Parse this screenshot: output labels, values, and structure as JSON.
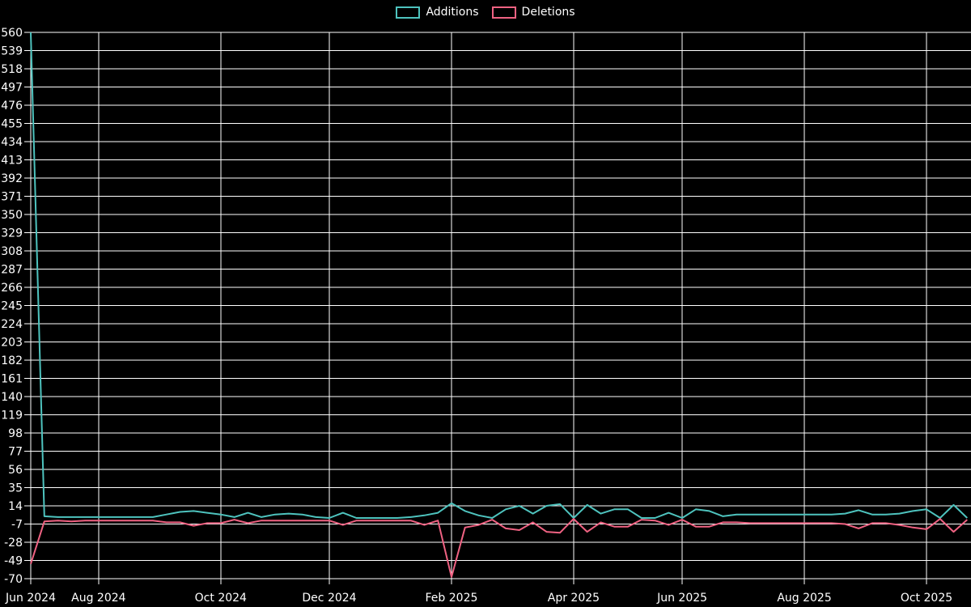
{
  "chart_data": {
    "type": "line",
    "title": "",
    "xlabel": "",
    "ylabel": "",
    "x_unit": "week",
    "grid": true,
    "legend_position": "top-center",
    "background_color": "#000000",
    "grid_color": "#ffffff",
    "text_color": "#ffffff",
    "ylim": [
      -70,
      560
    ],
    "y_ticks": [
      560,
      539,
      518,
      497,
      476,
      455,
      434,
      413,
      392,
      371,
      350,
      329,
      308,
      287,
      266,
      245,
      224,
      203,
      182,
      161,
      140,
      119,
      98,
      77,
      56,
      35,
      14,
      -7,
      -28,
      -49,
      -70
    ],
    "x_ticks": [
      {
        "label": "Jun 2024",
        "week": 0
      },
      {
        "label": "Aug 2024",
        "week": 5
      },
      {
        "label": "Oct 2024",
        "week": 14
      },
      {
        "label": "Dec 2024",
        "week": 22
      },
      {
        "label": "Feb 2025",
        "week": 31
      },
      {
        "label": "Apr 2025",
        "week": 40
      },
      {
        "label": "Jun 2025",
        "week": 48
      },
      {
        "label": "Aug 2025",
        "week": 57
      },
      {
        "label": "Oct 2025",
        "week": 66
      }
    ],
    "series": [
      {
        "name": "Additions",
        "color": "#4ec3be",
        "values": [
          560,
          2,
          1,
          1,
          1,
          1,
          1,
          1,
          1,
          1,
          4,
          7,
          8,
          6,
          4,
          1,
          6,
          1,
          4,
          5,
          4,
          1,
          0,
          6,
          0,
          0,
          0,
          0,
          1,
          3,
          6,
          17,
          8,
          3,
          0,
          10,
          14,
          5,
          14,
          16,
          0,
          15,
          5,
          10,
          10,
          0,
          0,
          6,
          0,
          10,
          8,
          2,
          4,
          4,
          4,
          4,
          4,
          4,
          4,
          4,
          5,
          9,
          4,
          4,
          5,
          8,
          10,
          0,
          15,
          0
        ]
      },
      {
        "name": "Deletions",
        "color": "#ef6282",
        "values": [
          -53,
          -4,
          -3,
          -4,
          -3,
          -3,
          -3,
          -3,
          -3,
          -3,
          -5,
          -5,
          -9,
          -6,
          -6,
          -2,
          -6,
          -3,
          -3,
          -3,
          -3,
          -3,
          -3,
          -8,
          -3,
          -3,
          -3,
          -3,
          -3,
          -8,
          -3,
          -68,
          -11,
          -8,
          -2,
          -12,
          -14,
          -5,
          -16,
          -17,
          -1,
          -16,
          -5,
          -10,
          -10,
          -2,
          -3,
          -8,
          -2,
          -10,
          -10,
          -5,
          -5,
          -6,
          -6,
          -6,
          -6,
          -6,
          -6,
          -6,
          -7,
          -12,
          -6,
          -6,
          -8,
          -11,
          -13,
          -1,
          -16,
          -2
        ]
      }
    ]
  }
}
